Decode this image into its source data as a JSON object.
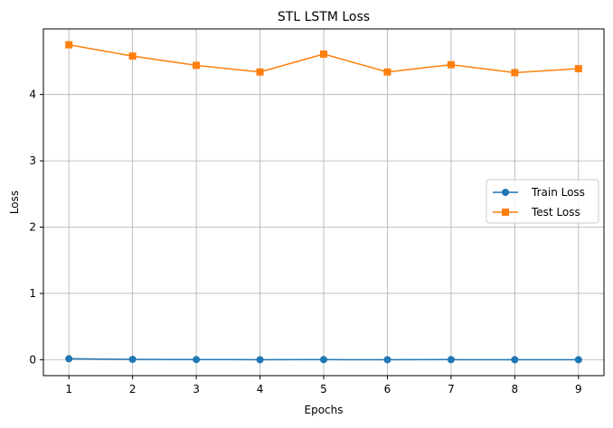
{
  "chart_data": {
    "type": "line",
    "title": "STL LSTM Loss",
    "xlabel": "Epochs",
    "ylabel": "Loss",
    "x": [
      1,
      2,
      3,
      4,
      5,
      6,
      7,
      8,
      9
    ],
    "xticks": [
      "1",
      "2",
      "3",
      "4",
      "5",
      "6",
      "7",
      "8",
      "9"
    ],
    "yticks": [
      "0",
      "1",
      "2",
      "3",
      "4"
    ],
    "xlim": [
      0.6,
      9.4
    ],
    "ylim": [
      -0.24,
      4.99
    ],
    "grid": true,
    "legend_position": "center-right",
    "series": [
      {
        "name": "Train Loss",
        "color": "#1f77b4",
        "marker": "circle",
        "values": [
          0.015,
          0.005,
          0.002,
          0.0,
          0.001,
          0.0,
          0.001,
          0.0,
          0.0
        ]
      },
      {
        "name": "Test Loss",
        "color": "#ff7f0e",
        "marker": "square",
        "values": [
          4.75,
          4.58,
          4.44,
          4.34,
          4.61,
          4.34,
          4.45,
          4.33,
          4.39
        ]
      }
    ]
  }
}
